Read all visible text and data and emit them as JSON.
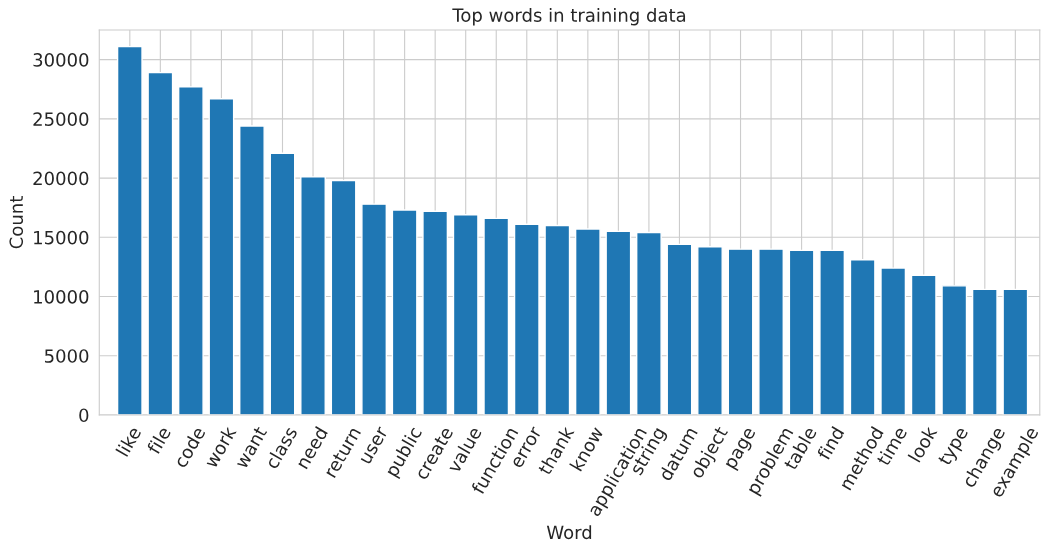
{
  "chart_data": {
    "type": "bar",
    "title": "Top words in training data",
    "xlabel": "Word",
    "ylabel": "Count",
    "categories": [
      "like",
      "file",
      "code",
      "work",
      "want",
      "class",
      "need",
      "return",
      "user",
      "public",
      "create",
      "value",
      "function",
      "error",
      "thank",
      "know",
      "application",
      "string",
      "datum",
      "object",
      "page",
      "problem",
      "table",
      "find",
      "method",
      "time",
      "look",
      "type",
      "change",
      "example"
    ],
    "values": [
      31100,
      28900,
      27700,
      26700,
      24400,
      22100,
      20100,
      19800,
      17800,
      17300,
      17200,
      16900,
      16600,
      16100,
      16000,
      15700,
      15500,
      15400,
      14400,
      14200,
      14000,
      14000,
      13900,
      13900,
      13100,
      12400,
      11800,
      10900,
      10600,
      10600
    ],
    "color": "#1f77b4",
    "ylim": [
      0,
      32500
    ],
    "yticks": [
      0,
      5000,
      10000,
      15000,
      20000,
      25000,
      30000
    ],
    "grid": true
  }
}
